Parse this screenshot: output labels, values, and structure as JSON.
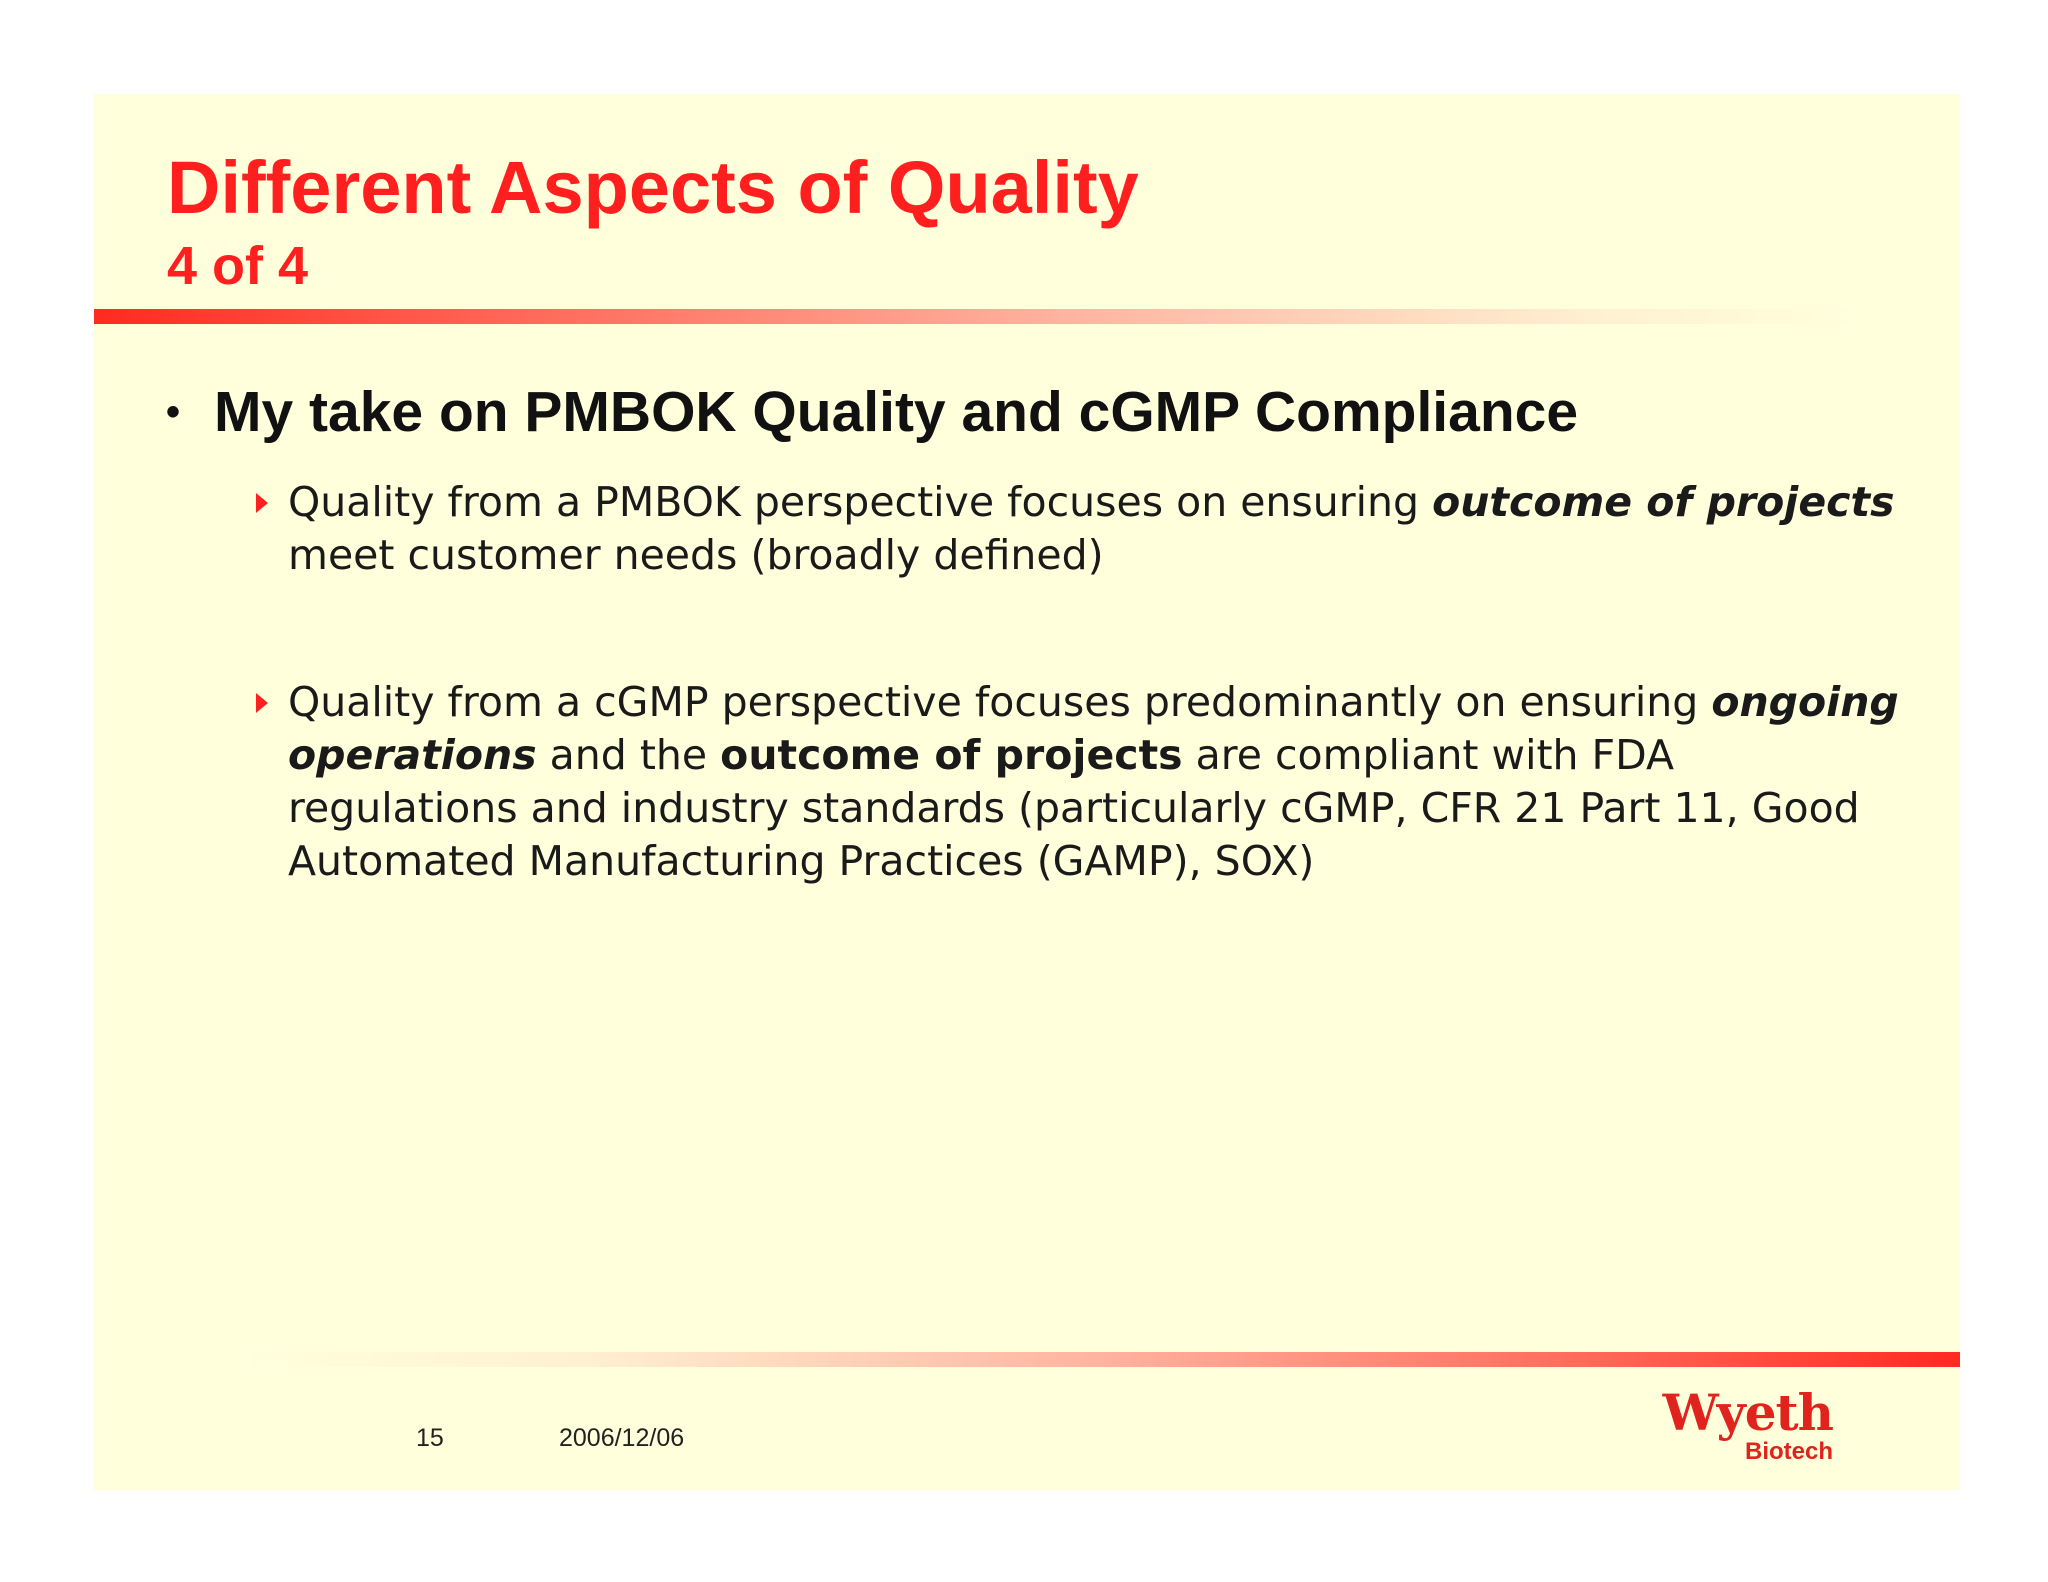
{
  "slide": {
    "title": "Different Aspects of Quality",
    "subtitle": "4 of 4",
    "main_bullet": {
      "marker": "•",
      "text": "My take on PMBOK Quality and cGMP Compliance"
    },
    "sub_bullets": [
      {
        "part1": "Quality from a PMBOK perspective focuses on ensuring ",
        "part2_bold_italic": "outcome of projects",
        "part3": " meet customer needs (broadly defined)"
      },
      {
        "part1": "Quality from a cGMP perspective focuses predominantly on ensuring ",
        "part2_bold_italic": "ongoing operations",
        "part3": " and the ",
        "part4_bold": "outcome of projects",
        "part5": " are compliant with FDA regulations and industry standards (particularly cGMP, CFR 21 Part 11, Good Automated Manufacturing Practices (GAMP), SOX)"
      }
    ],
    "footer": {
      "page_number": "15",
      "date": "2006/12/06"
    },
    "logo": {
      "name": "Wyeth",
      "tagline": "Biotech"
    }
  },
  "colors": {
    "slide_background": "#ffffdc",
    "title": "#ff1f1f",
    "accent_rule": "#ff2a20",
    "arrow_bullet": "#ff2020",
    "logo": "#e0231c",
    "body_text": "#1a1a1a"
  },
  "icons": {
    "sub_bullet": "right-triangle-arrow-icon"
  }
}
